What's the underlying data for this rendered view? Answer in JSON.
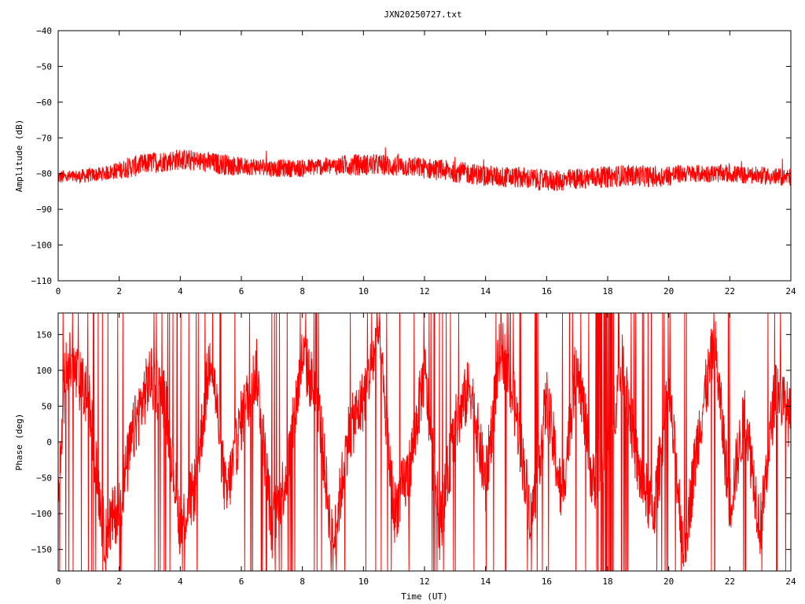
{
  "title": "JXN20250727.txt",
  "colors": {
    "series": "#ff0000",
    "axis": "#000000",
    "background": "#ffffff"
  },
  "chart_data": [
    {
      "type": "line",
      "title": "JXN20250727.txt",
      "xlabel": "",
      "ylabel": "Amplitude (dB)",
      "xlim": [
        0,
        24
      ],
      "ylim": [
        -110,
        -40
      ],
      "grid": false,
      "legend": "none",
      "x_ticks": [
        0,
        2,
        4,
        6,
        8,
        10,
        12,
        14,
        16,
        18,
        20,
        22,
        24
      ],
      "y_ticks": [
        -110,
        -100,
        -90,
        -80,
        -70,
        -60,
        -50,
        -40
      ],
      "series": [
        {
          "x": [
            0,
            0.5,
            1,
            1.5,
            2,
            2.5,
            3,
            3.5,
            4,
            4.5,
            5,
            5.5,
            6,
            6.5,
            7,
            7.5,
            8,
            8.5,
            9,
            9.5,
            10,
            10.5,
            11,
            11.5,
            12,
            12.5,
            13,
            13.5,
            14,
            14.5,
            15,
            15.5,
            16,
            16.5,
            17,
            17.5,
            18,
            18.5,
            19,
            19.5,
            20,
            20.5,
            21,
            21.5,
            22,
            22.5,
            23,
            23.5,
            24
          ],
          "y": [
            -81,
            -81,
            -80.5,
            -80,
            -79,
            -78,
            -77,
            -76.5,
            -76,
            -76.5,
            -77,
            -77.5,
            -78,
            -78,
            -78.5,
            -78.5,
            -78.5,
            -78,
            -78,
            -77.5,
            -77.5,
            -77.5,
            -78,
            -78,
            -78.5,
            -79,
            -79.5,
            -80,
            -80.5,
            -81,
            -81,
            -81.5,
            -82,
            -82,
            -81.5,
            -81,
            -81,
            -80.5,
            -80.5,
            -81,
            -80.5,
            -80,
            -80,
            -80,
            -80,
            -80.5,
            -80.5,
            -81,
            -81
          ],
          "spread": [
            2,
            2,
            2,
            2,
            2.5,
            3,
            3,
            3,
            3,
            3,
            3,
            3,
            2.5,
            2.5,
            2.5,
            2.5,
            2.5,
            2.5,
            2.5,
            3,
            3,
            3,
            3,
            3,
            3,
            3,
            3,
            3,
            3,
            3,
            3,
            3,
            3,
            3,
            3,
            3,
            3,
            3,
            3,
            3,
            3,
            2.5,
            2.5,
            2.5,
            2.5,
            2.5,
            2.5,
            2.5,
            2.5
          ]
        }
      ]
    },
    {
      "type": "line",
      "title": "",
      "xlabel": "Time (UT)",
      "ylabel": "Phase (deg)",
      "xlim": [
        0,
        24
      ],
      "ylim": [
        -180,
        180
      ],
      "grid": false,
      "legend": "none",
      "x_ticks": [
        0,
        2,
        4,
        6,
        8,
        10,
        12,
        14,
        16,
        18,
        20,
        22,
        24
      ],
      "y_ticks": [
        -150,
        -100,
        -50,
        0,
        50,
        100,
        150
      ],
      "series": [
        {
          "x": [
            0,
            0.25,
            0.5,
            1,
            1.5,
            2,
            2.5,
            3,
            3.5,
            4,
            4.5,
            5,
            5.5,
            6,
            6.5,
            7,
            7.5,
            8,
            8.5,
            9,
            9.5,
            10,
            10.5,
            11,
            11.5,
            12,
            12.5,
            13,
            13.5,
            14,
            14.5,
            15,
            15.5,
            16,
            16.5,
            17,
            17.5,
            18,
            18.5,
            19,
            19.5,
            20,
            20.5,
            21,
            21.5,
            22,
            22.5,
            23,
            23.5,
            24
          ],
          "y": [
            -100,
            120,
            100,
            60,
            -130,
            -90,
            20,
            90,
            60,
            -120,
            -60,
            130,
            -80,
            30,
            100,
            -120,
            -40,
            120,
            60,
            -150,
            10,
            60,
            150,
            -100,
            -40,
            100,
            -120,
            20,
            80,
            -60,
            140,
            40,
            -110,
            60,
            -80,
            120,
            -60,
            0,
            110,
            -40,
            -100,
            70,
            -150,
            20,
            140,
            -90,
            40,
            -120,
            80,
            30
          ],
          "note": "phase wraps between -180 and 180"
        }
      ]
    }
  ]
}
